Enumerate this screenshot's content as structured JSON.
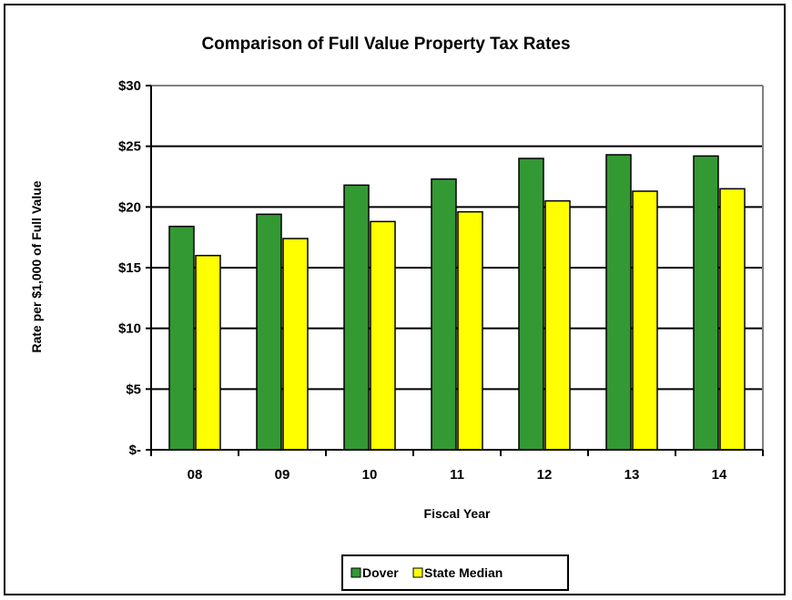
{
  "chart_data": {
    "type": "bar",
    "title": "Comparison of Full Value Property Tax Rates",
    "xlabel": "Fiscal Year",
    "ylabel": "Rate per $1,000 of Full Value",
    "categories": [
      "08",
      "09",
      "10",
      "11",
      "12",
      "13",
      "14"
    ],
    "series": [
      {
        "name": "Dover",
        "color": "#339933",
        "values": [
          18.4,
          19.4,
          21.8,
          22.3,
          24.0,
          24.3,
          24.2
        ]
      },
      {
        "name": "State Median",
        "color": "#ffff00",
        "values": [
          16.0,
          17.4,
          18.8,
          19.6,
          20.5,
          21.3,
          21.5
        ]
      }
    ],
    "ylim": [
      0,
      30
    ],
    "yticks": [
      0,
      5,
      10,
      15,
      20,
      25,
      30
    ],
    "ytick_labels": [
      "$-",
      "$5",
      "$10",
      "$15",
      "$20",
      "$25",
      "$30"
    ],
    "grid": true,
    "legend_position": "bottom",
    "plot_border_color": "#808080"
  }
}
